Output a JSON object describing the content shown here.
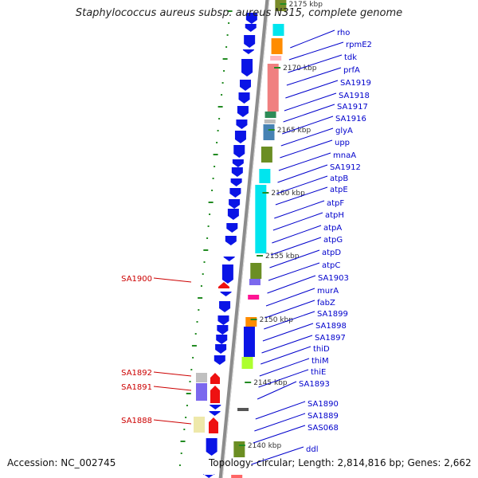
{
  "title": "Staphylococcus aureus subsp. aureus N315, complete genome",
  "accession": "Accession: NC_002745",
  "topology": "Topology: circular; Length: 2,814,816 bp; Genes: 2,662",
  "colors": {
    "blue_label": "#0000cc",
    "red_label": "#cc0000",
    "backbone": "#8c8c8c",
    "tick": "#228b22",
    "gene_blue": "#0a14e6",
    "gene_red": "#ee1111"
  },
  "scale_ticks": [
    "2175 kbp",
    "2170 kbp",
    "2165 kbp",
    "2160 kbp",
    "2155 kbp",
    "2150 kbp",
    "2145 kbp",
    "2140 kbp"
  ],
  "genes_right": [
    "rho",
    "rpmE2",
    "tdk",
    "prfA",
    "SA1919",
    "SA1918",
    "SA1917",
    "SA1916",
    "glyA",
    "upp",
    "mnaA",
    "SA1912",
    "atpB",
    "atpE",
    "atpF",
    "atpH",
    "atpA",
    "atpG",
    "atpD",
    "atpC",
    "SA1903",
    "murA",
    "fabZ",
    "SA1899",
    "SA1898",
    "SA1897",
    "thiD",
    "thiM",
    "thiE",
    "SA1893",
    "SA1890",
    "SA1889",
    "SAS068",
    "ddl"
  ],
  "genes_left": [
    "SA1900",
    "SA1892",
    "SA1891",
    "SA1888"
  ]
}
